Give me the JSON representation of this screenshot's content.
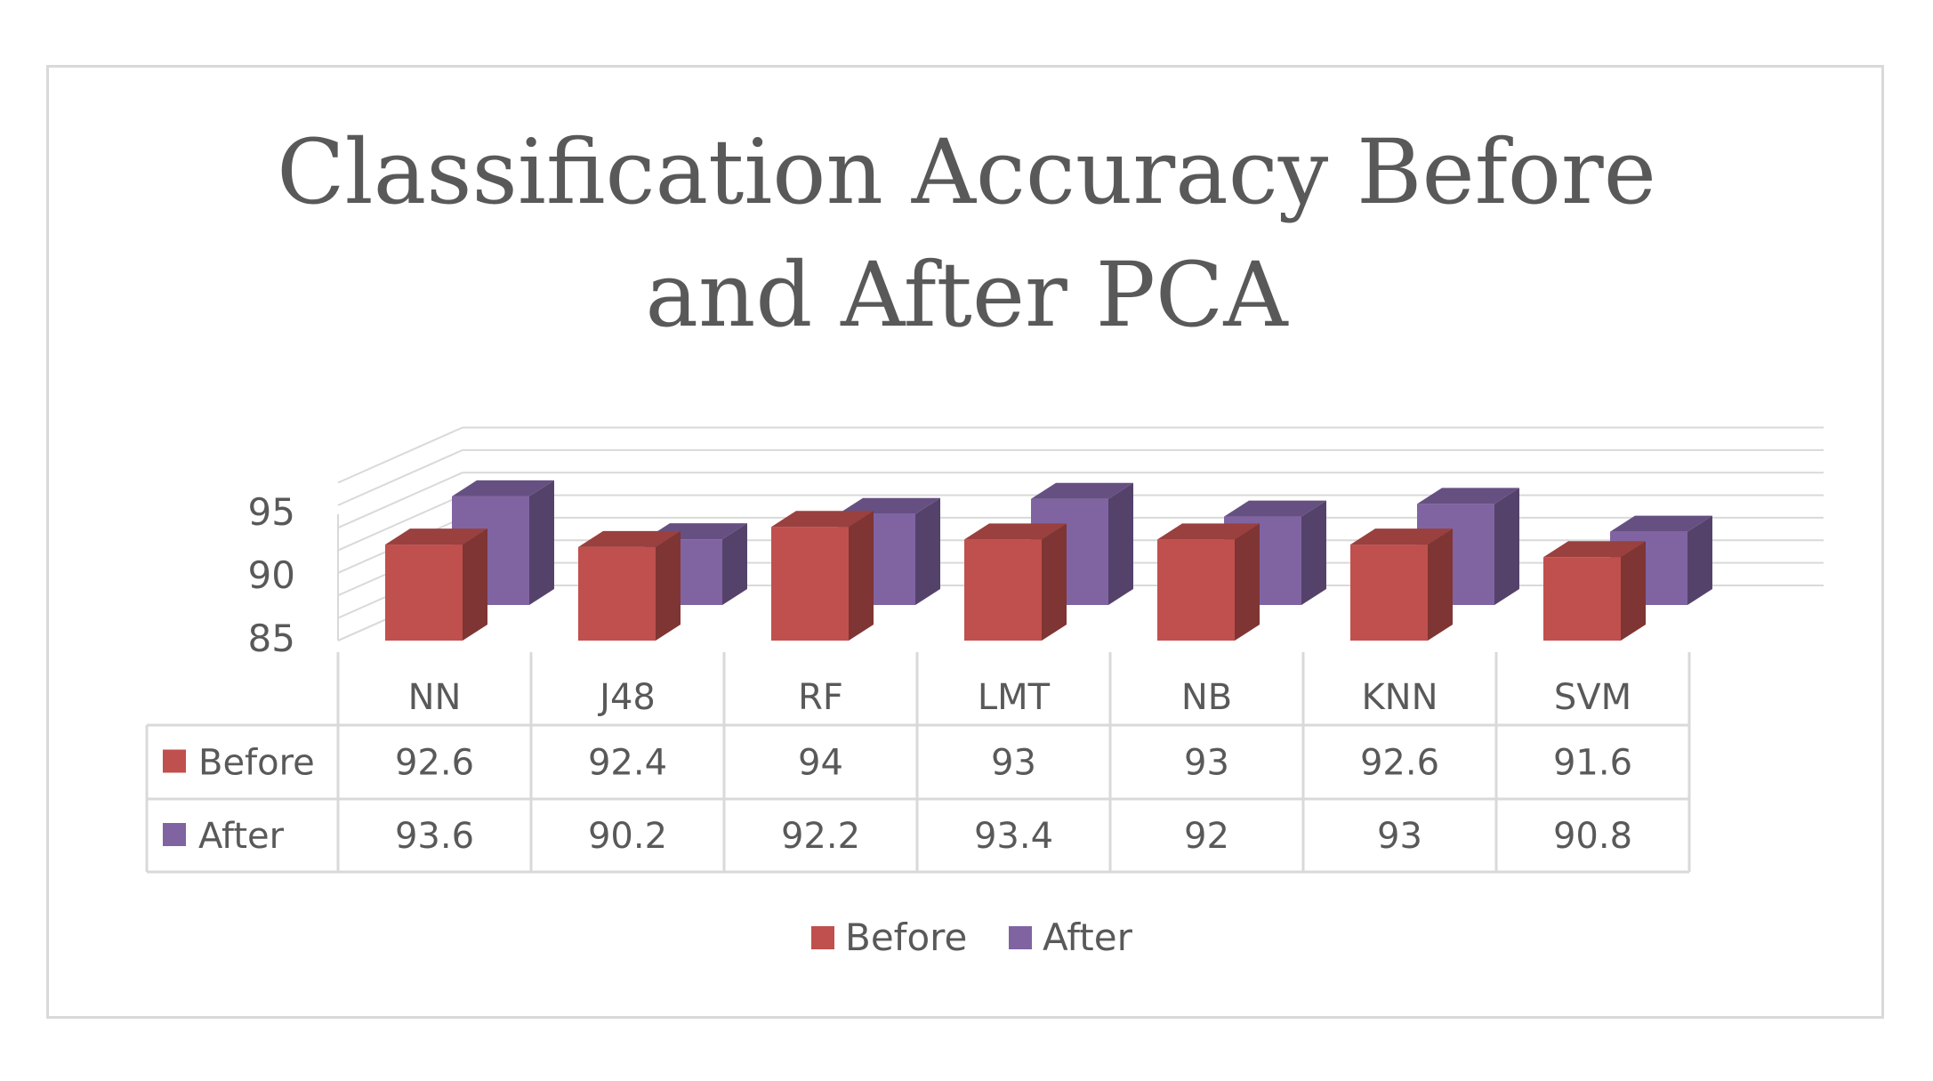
{
  "chart_data": {
    "type": "bar",
    "style": "3d-clustered-column-with-data-table",
    "title_lines": [
      "Classification Accuracy Before",
      "and After PCA"
    ],
    "categories": [
      "NN",
      "J48",
      "RF",
      "LMT",
      "NB",
      "KNN",
      "SVM"
    ],
    "series": [
      {
        "name": "Before",
        "values": [
          92.6,
          92.4,
          94,
          93,
          93,
          92.6,
          91.6
        ],
        "labels": [
          "92.6",
          "92.4",
          "94",
          "93",
          "93",
          "92.6",
          "91.6"
        ],
        "color": "#c0504d"
      },
      {
        "name": "After",
        "values": [
          93.6,
          90.2,
          92.2,
          93.4,
          92,
          93,
          90.8
        ],
        "labels": [
          "93.6",
          "90.2",
          "92.2",
          "93.4",
          "92",
          "93",
          "90.8"
        ],
        "color": "#8064a2"
      }
    ],
    "yaxis": {
      "min": 85,
      "max": 95,
      "ticks": [
        85,
        90,
        95
      ],
      "tick_labels": [
        "85",
        "90",
        "95"
      ]
    },
    "grid": true,
    "legend": {
      "position": "bottom",
      "entries": [
        "Before",
        "After"
      ]
    },
    "data_table": true
  }
}
